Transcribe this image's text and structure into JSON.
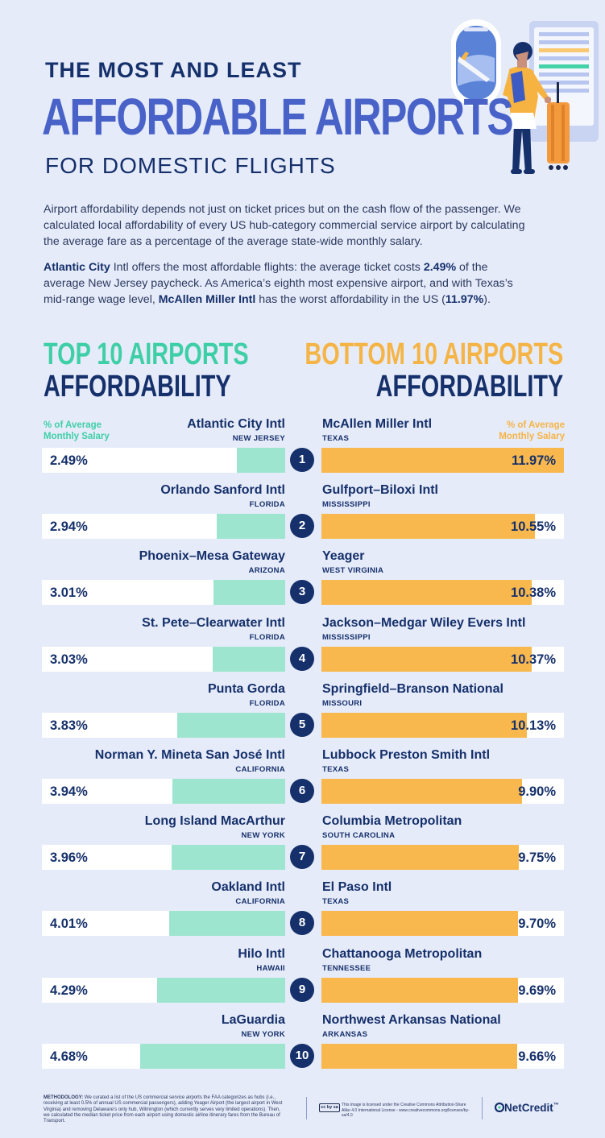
{
  "header": {
    "title_line1": "THE MOST AND LEAST",
    "title_line2": "AFFORDABLE AIRPORTS",
    "title_line3": "FOR DOMESTIC FLIGHTS"
  },
  "intro": {
    "paragraph1": "Airport affordability depends not just on ticket prices but on the cash flow of the passenger. We calculated local affordability of every US hub-category commercial service airport by calculating the average fare as a percentage of the average state-wide monthly salary.",
    "p2_part1": "Atlantic City",
    "p2_part2": " Intl offers the most affordable flights: the average ticket costs ",
    "p2_part3": "2.49%",
    "p2_part4": " of the average New Jersey paycheck. As America’s eighth most expensive airport, and with Texas’s mid-range wage level, ",
    "p2_part5": "McAllen Miller Intl",
    "p2_part6": " has the worst affordability in the US (",
    "p2_part7": "11.97%",
    "p2_part8": ")."
  },
  "sections": {
    "top_line1": "TOP 10 AIRPORTS",
    "top_line2": "AFFORDABILITY",
    "bottom_line1": "BOTTOM 10 AIRPORTS",
    "bottom_line2": "AFFORDABILITY",
    "legend_line1": "% of Average",
    "legend_line2": "Monthly Salary"
  },
  "colors": {
    "green": "#9ee5cf",
    "orange": "#f9b84d",
    "navy": "#15306a"
  },
  "chart_data": {
    "type": "bar",
    "title": "The Most and Least Affordable Airports for Domestic Flights",
    "ylabel": "% of Average Monthly Salary",
    "xlim": [
      0,
      11.97
    ],
    "ranks": [
      "1",
      "2",
      "3",
      "4",
      "5",
      "6",
      "7",
      "8",
      "9",
      "10"
    ],
    "series": [
      {
        "name": "Top 10 Airports Affordability",
        "airports": [
          "Atlantic City Intl",
          "Orlando Sanford Intl",
          "Phoenix–Mesa Gateway",
          "St. Pete–Clearwater Intl",
          "Punta Gorda",
          "Norman Y. Mineta San José Intl",
          "Long Island MacArthur",
          "Oakland Intl",
          "Hilo Intl",
          "LaGuardia"
        ],
        "states": [
          "NEW JERSEY",
          "FLORIDA",
          "ARIZONA",
          "FLORIDA",
          "FLORIDA",
          "CALIFORNIA",
          "NEW YORK",
          "CALIFORNIA",
          "HAWAII",
          "NEW YORK"
        ],
        "values": [
          2.49,
          2.94,
          3.01,
          3.03,
          3.83,
          3.94,
          3.96,
          4.01,
          4.29,
          4.68
        ],
        "labels": [
          "2.49%",
          "2.94%",
          "3.01%",
          "3.03%",
          "3.83%",
          "3.94%",
          "3.96%",
          "4.01%",
          "4.29%",
          "4.68%"
        ]
      },
      {
        "name": "Bottom 10 Airports Affordability",
        "airports": [
          "McAllen Miller Intl",
          "Gulfport–Biloxi Intl",
          "Yeager",
          "Jackson–Medgar Wiley Evers Intl",
          "Springfield–Branson National",
          "Lubbock Preston Smith Intl",
          "Columbia Metropolitan",
          "El Paso Intl",
          "Chattanooga Metropolitan",
          "Northwest Arkansas National"
        ],
        "states": [
          "TEXAS",
          "MISSISSIPPI",
          "WEST VIRGINIA",
          "MISSISSIPPI",
          "MISSOURI",
          "TEXAS",
          "SOUTH CAROLINA",
          "TEXAS",
          "TENNESSEE",
          "ARKANSAS"
        ],
        "values": [
          11.97,
          10.55,
          10.38,
          10.37,
          10.13,
          9.9,
          9.75,
          9.7,
          9.69,
          9.66
        ],
        "labels": [
          "11.97%",
          "10.55%",
          "10.38%",
          "10.37%",
          "10.13%",
          "9.90%",
          "9.75%",
          "9.70%",
          "9.69%",
          "9.66%"
        ]
      }
    ]
  },
  "footer": {
    "methodology_label": "METHODOLOGY:",
    "methodology_text": " We curated a list of the US commercial service airports the FAA categorizes as hubs (i.e., receiving at least 0.5% of annual US commercial passengers), adding Yeager Airport (the largest airport in West Virginia) and removing Delaware’s only hub, Wilmington (which currently serves very limited operations). Then, we calculated the median ticket price from each airport using domestic airline itinerary fares from the Bureau of Transport.",
    "license_badge": "cc by sa",
    "license_text": "This image is licensed under the Creative Commons Attribution-Share Alike 4.0 International License - www.creativecommons.org/licenses/by-sa/4.0",
    "brand": "NetCredit",
    "brand_tm": "™"
  }
}
